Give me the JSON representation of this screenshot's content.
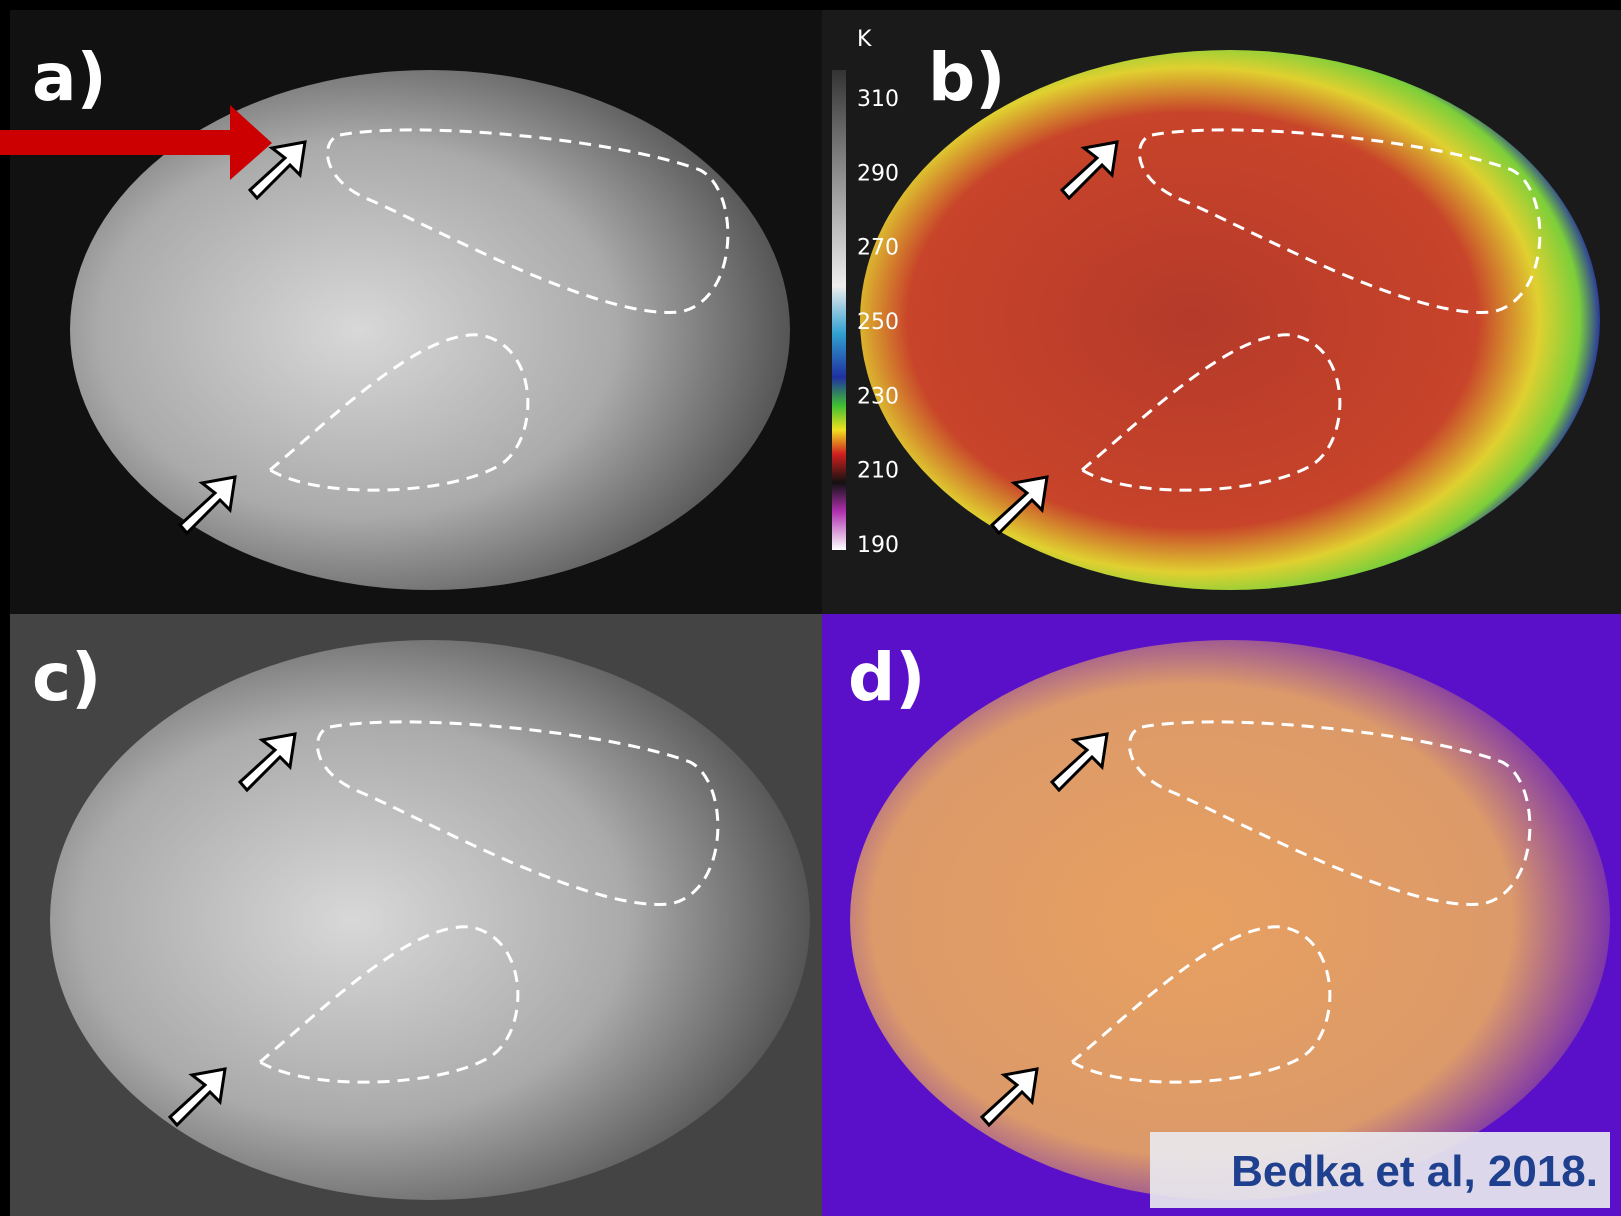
{
  "panels": [
    {
      "label": "a)"
    },
    {
      "label": "b)"
    },
    {
      "label": "c)"
    },
    {
      "label": "d)"
    }
  ],
  "colorbar": {
    "unit": "K",
    "ticks": [
      310,
      290,
      270,
      250,
      230,
      210,
      190
    ]
  },
  "citation": "Bedka et al, 2018."
}
